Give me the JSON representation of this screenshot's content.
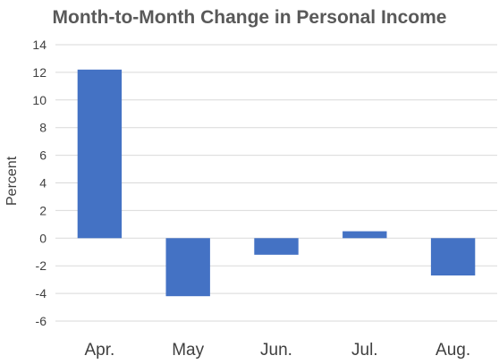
{
  "chart_data": {
    "type": "bar",
    "title": "Month-to-Month Change in Personal Income",
    "xlabel": "",
    "ylabel": "Percent",
    "categories": [
      "Apr.",
      "May",
      "Jun.",
      "Jul.",
      "Aug."
    ],
    "values": [
      12.2,
      -4.2,
      -1.2,
      0.5,
      -2.7
    ],
    "ylim": [
      -6,
      14
    ],
    "yticks": [
      -6,
      -4,
      -2,
      0,
      2,
      4,
      6,
      8,
      10,
      12,
      14
    ],
    "grid": true,
    "legend": "none",
    "bar_color": "#4472C4",
    "grid_color": "#D9D9D9"
  }
}
